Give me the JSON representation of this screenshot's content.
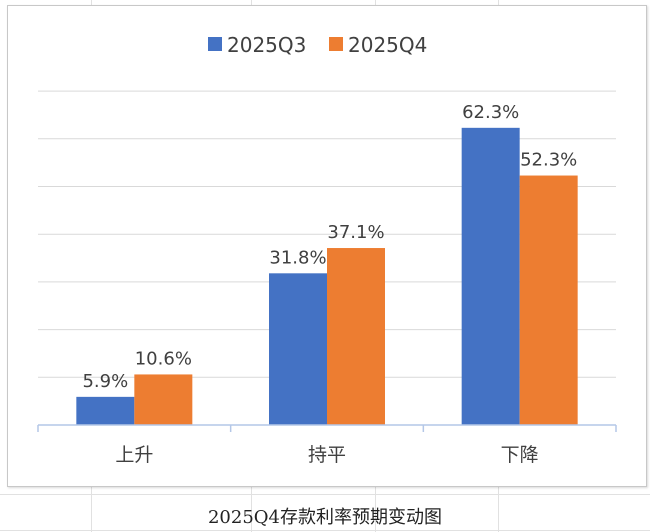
{
  "caption": "2025Q4存款利率预期变动图",
  "chart_data": {
    "type": "bar",
    "title": "",
    "xlabel": "",
    "ylabel": "",
    "categories": [
      "上升",
      "持平",
      "下降"
    ],
    "series": [
      {
        "name": "2025Q3",
        "values": [
          5.9,
          31.8,
          62.3
        ],
        "labels": [
          "5.9%",
          "31.8%",
          "62.3%"
        ],
        "color": "#4472c4"
      },
      {
        "name": "2025Q4",
        "values": [
          10.6,
          37.1,
          52.3
        ],
        "labels": [
          "10.6%",
          "37.1%",
          "52.3%"
        ],
        "color": "#ed7d31"
      }
    ],
    "ylim": [
      0,
      70
    ],
    "y_unit": "%",
    "grid": true,
    "gridline_step": 10,
    "y_axis_labels_shown": false,
    "legend_position": "top",
    "data_labels": true
  }
}
